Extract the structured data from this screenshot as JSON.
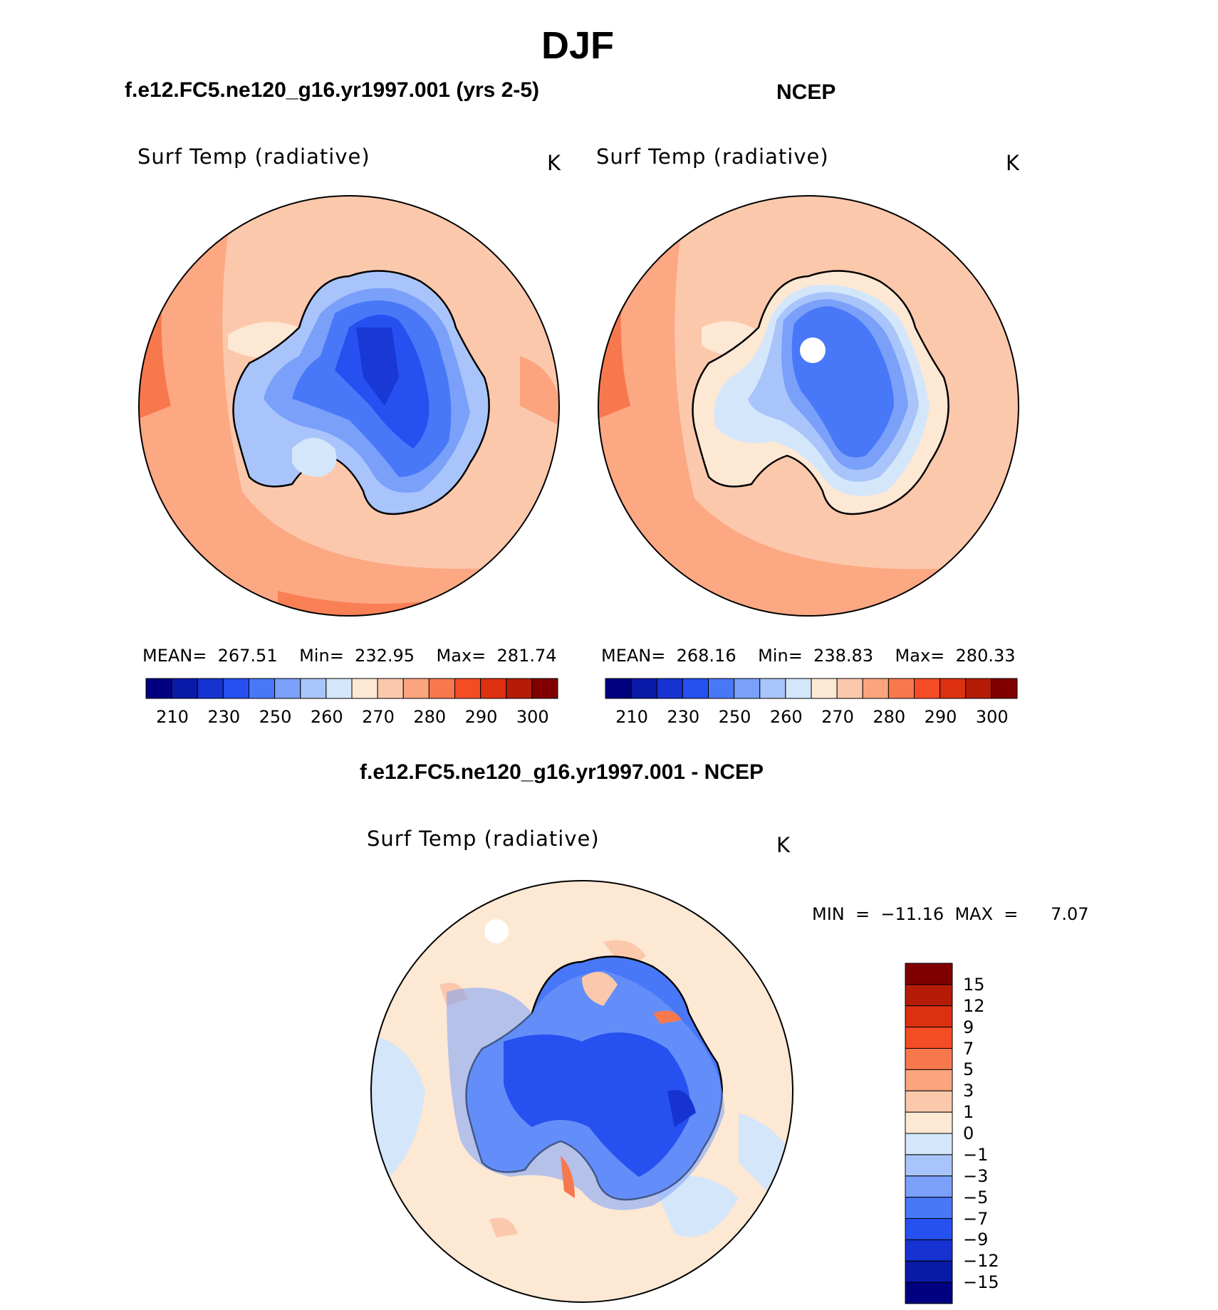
{
  "figure": {
    "title": "DJF",
    "left_title": "f.e12.FC5.ne120_g16.yr1997.001 (yrs 2-5)",
    "right_title": "NCEP",
    "diff_title": "f.e12.FC5.ne120_g16.yr1997.001 - NCEP"
  },
  "panels": [
    {
      "variable": "Surf Temp (radiative)",
      "units": "K",
      "stats": "MEAN=  267.51    Min=  232.95    Max=  281.74"
    },
    {
      "variable": "Surf Temp (radiative)",
      "units": "K",
      "stats": "MEAN=  268.16    Min=  238.83    Max=  280.33"
    },
    {
      "variable": "Surf Temp (radiative)",
      "units": "K",
      "stats": "MIN  =  −11.16  MAX  =      7.07"
    }
  ],
  "colorbar_abs": {
    "colors": [
      "#000080",
      "#0a1aa8",
      "#1632d0",
      "#2650f0",
      "#4878f8",
      "#7aa0fa",
      "#a8c4fa",
      "#d4e6fa",
      "#fde8d4",
      "#fcc8ac",
      "#fca47e",
      "#f8784e",
      "#f44c24",
      "#dc3010",
      "#b41c08",
      "#800000"
    ],
    "tick_labels": [
      "210",
      "230",
      "250",
      "260",
      "270",
      "280",
      "290",
      "300"
    ]
  },
  "colorbar_diff": {
    "colors": [
      "#000080",
      "#0a1aa8",
      "#1632d0",
      "#2650f0",
      "#4878f8",
      "#7aa0fa",
      "#a8c4fa",
      "#d4e6fa",
      "#fde8d4",
      "#fcc8ac",
      "#fca47e",
      "#f8784e",
      "#f44c24",
      "#dc3010",
      "#b41c08",
      "#800000"
    ],
    "tick_labels": [
      "15",
      "12",
      "9",
      "7",
      "5",
      "3",
      "1",
      "0",
      "−1",
      "−3",
      "−5",
      "−7",
      "−9",
      "−12",
      "−15"
    ]
  }
}
